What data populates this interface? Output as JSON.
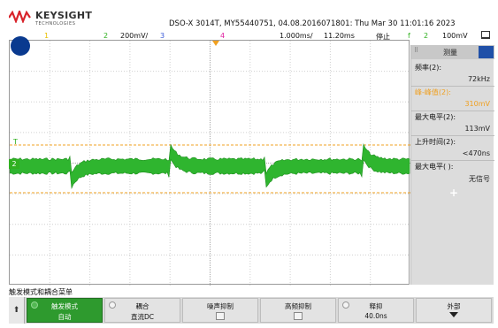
{
  "header": {
    "brand": "KEYSIGHT",
    "brand_sub": "TECHNOLOGIES",
    "model_info": "DSO-X 3014T, MY55440751, 04.08.2016071801: Thu Mar 30 11:01:16 2023"
  },
  "channels": {
    "ch1": "1",
    "ch2": "2",
    "ch2_scale": "200mV/",
    "ch3": "3",
    "ch4": "4"
  },
  "timebase": {
    "scale": "1.000ms/",
    "delay": "11.20ms",
    "run_state": "停止",
    "trigger_icon": "f",
    "trigger_channel": "2",
    "trigger_level": "100mV"
  },
  "markers": {
    "channel_marker": "2",
    "trigger_level_marker": "T"
  },
  "measure_panel": {
    "title": "测量",
    "dots": "⠿",
    "items": [
      {
        "label": "频率(2):",
        "value": "72kHz",
        "highlight": false
      },
      {
        "label": "峰-峰值(2):",
        "value": "310mV",
        "highlight": true
      },
      {
        "label": "最大电平(2):",
        "value": "113mV",
        "highlight": false
      },
      {
        "label": "上升时间(2):",
        "value": "<470ns",
        "highlight": false
      },
      {
        "label": "最大电平( ):",
        "value": "无信号",
        "highlight": false
      }
    ],
    "add_symbol": "+"
  },
  "softkeys": {
    "menu_title": "触发模式和耦合菜单",
    "arrow": "⬆",
    "keys": [
      {
        "label": "触发模式",
        "value": "自动"
      },
      {
        "label": "耦合",
        "value": "直流DC"
      },
      {
        "label": "噪声抑制",
        "value": ""
      },
      {
        "label": "高频抑制",
        "value": ""
      },
      {
        "label": "释抑",
        "value": "40.0ns"
      },
      {
        "label": "外部",
        "value": ""
      }
    ]
  },
  "colors": {
    "ch1": "#e8c000",
    "ch2": "#30b020",
    "ch3": "#3a5ad8",
    "ch4": "#e020a0",
    "cursor": "#f0a020",
    "softkey_active": "#2e9a2e"
  },
  "icons": {
    "logo": "keysight-wave-logo",
    "trigger": "trigger-edge-icon",
    "display": "square-display-icon",
    "arrow": "up-arrow-icon",
    "external": "down-arrow-icon"
  }
}
